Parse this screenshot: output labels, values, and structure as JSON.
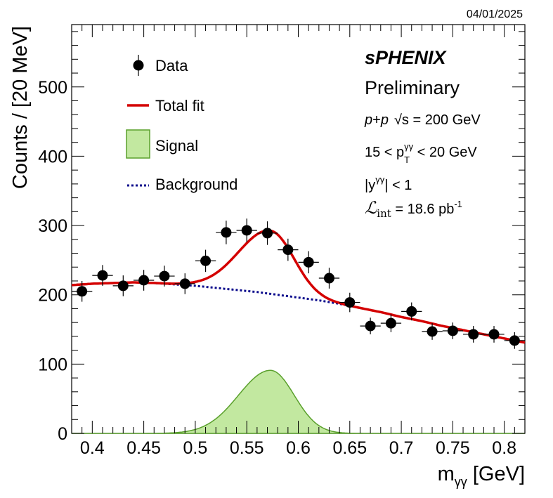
{
  "date_stamp": "04/01/2025",
  "colors": {
    "data": "#000000",
    "total_fit": "#d40000",
    "signal_fill": "#c2e8a0",
    "signal_line": "#5aa02c",
    "background": "#0a0a8c"
  },
  "labels": {
    "experiment": "sPHENIX",
    "status": "Preliminary",
    "collision_p1": "p",
    "collision_plus": "+",
    "collision_p2": "p",
    "sqrt_s": "√s",
    "energy": " = 200 GeV",
    "pt_low": "15 < p",
    "pt_sub": "T",
    "pt_sup": "γγ",
    "pt_high": " < 20 GeV",
    "rap_pre": "|y",
    "rap_sup": "γγ",
    "rap_post": "| < 1",
    "lumi_symbol": "ℒ",
    "lumi_sub": "int",
    "lumi_value": " = 18.6 pb",
    "lumi_sup": "-1"
  },
  "chart_data": {
    "type": "scatter",
    "xlabel": "m",
    "xlabel_sub": "γγ",
    "xlabel_unit": " [GeV]",
    "ylabel": "Counts / [20 MeV]",
    "xlim": [
      0.38,
      0.82
    ],
    "ylim": [
      0,
      590
    ],
    "x_ticks": [
      0.4,
      0.45,
      0.5,
      0.55,
      0.6,
      0.65,
      0.7,
      0.75,
      0.8
    ],
    "x_tick_labels": [
      "0.4",
      "0.45",
      "0.5",
      "0.55",
      "0.6",
      "0.65",
      "0.7",
      "0.75",
      "0.8"
    ],
    "y_ticks": [
      0,
      100,
      200,
      300,
      400,
      500
    ],
    "y_tick_labels": [
      "0",
      "100",
      "200",
      "300",
      "400",
      "500"
    ],
    "legend": {
      "placement": "top-left",
      "entries": [
        {
          "key": "data",
          "label": "Data"
        },
        {
          "key": "total_fit",
          "label": "Total fit"
        },
        {
          "key": "signal",
          "label": "Signal"
        },
        {
          "key": "background",
          "label": "Background"
        }
      ]
    },
    "data_points": {
      "name": "Data",
      "x": [
        0.39,
        0.41,
        0.43,
        0.45,
        0.47,
        0.49,
        0.51,
        0.53,
        0.55,
        0.57,
        0.59,
        0.61,
        0.63,
        0.65,
        0.67,
        0.69,
        0.71,
        0.73,
        0.75,
        0.77,
        0.79,
        0.81
      ],
      "y": [
        205,
        228,
        213,
        221,
        227,
        216,
        249,
        290,
        293,
        289,
        265,
        247,
        224,
        189,
        155,
        159,
        176,
        147,
        148,
        143,
        143,
        134
      ],
      "yerr": [
        15,
        15,
        15,
        15,
        15,
        15,
        16,
        17,
        17,
        17,
        16,
        16,
        15,
        14,
        12,
        13,
        13,
        12,
        12,
        12,
        12,
        12
      ],
      "xerr": 0.01
    },
    "signal_model": {
      "name": "Signal",
      "amplitude": 91,
      "mean": 0.573,
      "sigma_left": 0.031,
      "sigma_right": 0.023,
      "x_range": [
        0.38,
        0.82
      ]
    },
    "background_model": {
      "name": "Background",
      "x": [
        0.38,
        0.4,
        0.42,
        0.44,
        0.46,
        0.48,
        0.5,
        0.52,
        0.54,
        0.56,
        0.58,
        0.6,
        0.62,
        0.64,
        0.66,
        0.68,
        0.7,
        0.72,
        0.74,
        0.76,
        0.78,
        0.8,
        0.82
      ],
      "y": [
        214,
        216,
        217,
        218,
        217,
        215,
        213,
        210,
        207,
        204,
        200,
        196,
        192,
        187,
        181,
        175,
        168,
        162,
        155,
        149,
        143,
        137,
        131
      ]
    }
  }
}
